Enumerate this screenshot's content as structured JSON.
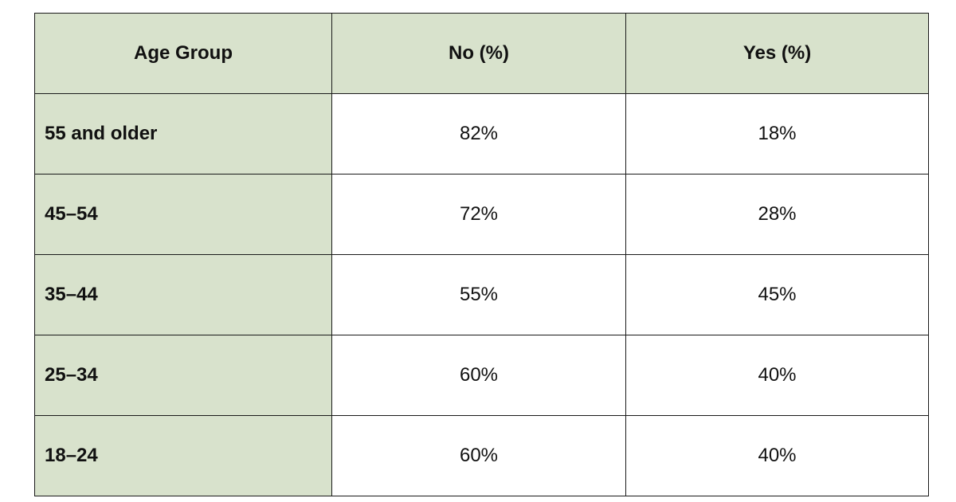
{
  "chart_data": {
    "type": "table",
    "columns": [
      "Age Group",
      "No (%)",
      "Yes (%)"
    ],
    "rows": [
      {
        "label": "55 and older",
        "no": "82%",
        "yes": "18%"
      },
      {
        "label": "45–54",
        "no": "72%",
        "yes": "28%"
      },
      {
        "label": "35–44",
        "no": "55%",
        "yes": "45%"
      },
      {
        "label": "25–34",
        "no": "60%",
        "yes": "40%"
      },
      {
        "label": "18–24",
        "no": "60%",
        "yes": "40%"
      }
    ]
  },
  "colors": {
    "header_fill": "#d8e2cc",
    "border": "#1a1a1a",
    "text": "#111111"
  }
}
